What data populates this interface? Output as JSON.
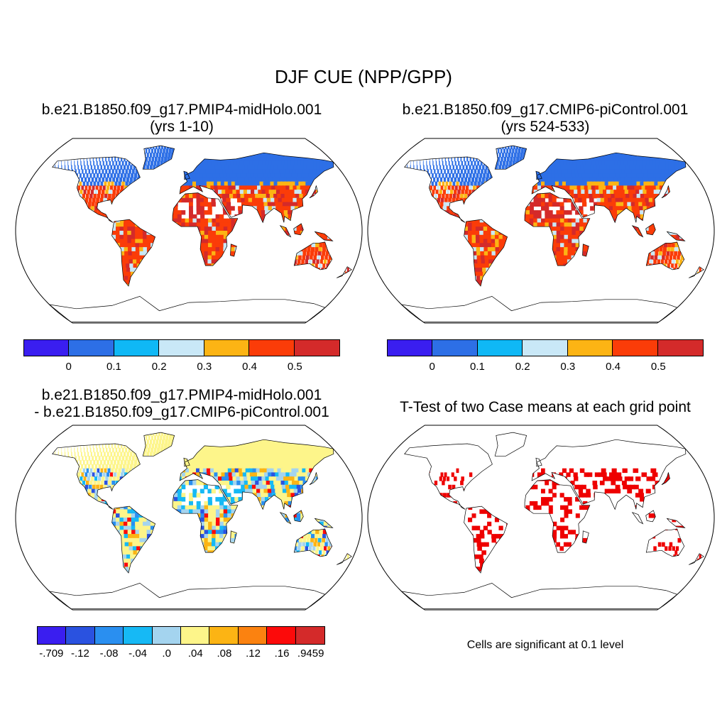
{
  "title": "DJF CUE (NPP/GPP)",
  "panels": [
    {
      "title_line1": "b.e21.B1850.f09_g17.PMIP4-midHolo.001",
      "title_line2": "(yrs 1-10)",
      "colorbar": {
        "colors": [
          "#3a1ef0",
          "#2d6fe6",
          "#0fb8f5",
          "#c9e8f7",
          "#fcb414",
          "#fb3c08",
          "#d42a2a"
        ],
        "labels": [
          "0",
          "0.1",
          "0.2",
          "0.3",
          "0.4",
          "0.5"
        ]
      }
    },
    {
      "title_line1": "b.e21.B1850.f09_g17.CMIP6-piControl.001",
      "title_line2": "(yrs 524-533)",
      "colorbar": {
        "colors": [
          "#3a1ef0",
          "#2d6fe6",
          "#0fb8f5",
          "#c9e8f7",
          "#fcb414",
          "#fb3c08",
          "#d42a2a"
        ],
        "labels": [
          "0",
          "0.1",
          "0.2",
          "0.3",
          "0.4",
          "0.5"
        ]
      }
    },
    {
      "title_line1": "b.e21.B1850.f09_g17.PMIP4-midHolo.001",
      "title_line2": "- b.e21.B1850.f09_g17.CMIP6-piControl.001",
      "colorbar": {
        "colors": [
          "#3a1ef0",
          "#2a52e0",
          "#2a8ff0",
          "#16b9f5",
          "#a4d4ef",
          "#fdf58a",
          "#fcb414",
          "#fb8210",
          "#fc0a0a",
          "#d42a2a"
        ],
        "labels": [
          "-.709",
          "-.12",
          "-.08",
          "-.04",
          ".0",
          ".04",
          ".08",
          ".12",
          ".16",
          ".9459"
        ]
      }
    },
    {
      "title_line1": "T-Test of two Case means at each grid point",
      "note": "Cells are significant at 0.1 level",
      "sig_color": "#ee0000"
    }
  ]
}
